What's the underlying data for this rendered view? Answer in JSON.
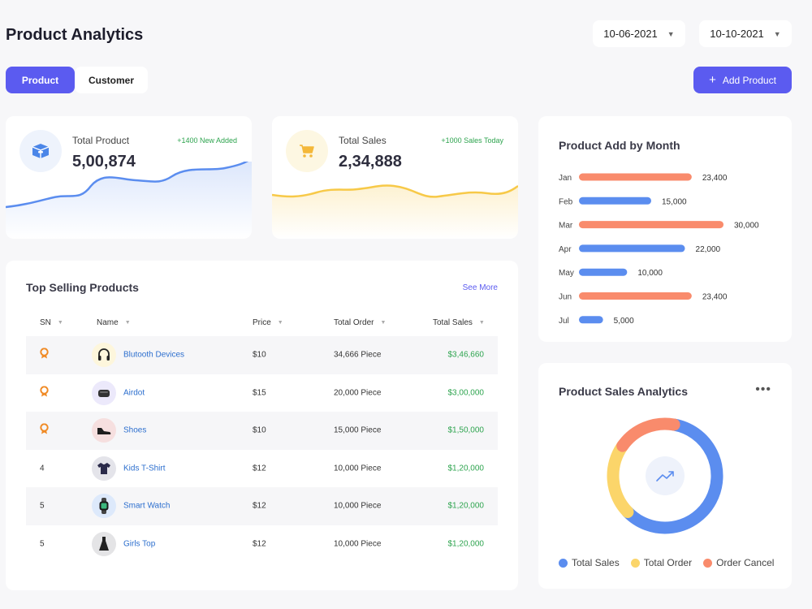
{
  "header": {
    "title": "Product Analytics",
    "date_start": "10-06-2021",
    "date_end": "10-10-2021"
  },
  "tabs": [
    {
      "label": "Product",
      "active": true
    },
    {
      "label": "Customer",
      "active": false
    }
  ],
  "add_button": {
    "label": "Add Product",
    "icon": "plus-icon"
  },
  "stats": {
    "products": {
      "label": "Total Product",
      "value": "5,00,874",
      "badge": "+1400 New Added",
      "icon": "box-icon",
      "color": "#5b8def"
    },
    "sales": {
      "label": "Total Sales",
      "value": "2,34,888",
      "badge": "+1000 Sales Today",
      "icon": "cart-icon",
      "color": "#f7c948"
    }
  },
  "bar_card": {
    "title": "Product Add  by Month"
  },
  "chart_data": [
    {
      "type": "bar",
      "orientation": "horizontal",
      "title": "Product Add  by Month",
      "categories": [
        "Jan",
        "Feb",
        "Mar",
        "Apr",
        "May",
        "Jun",
        "Jul"
      ],
      "values": [
        23400,
        15000,
        30000,
        22000,
        10000,
        23400,
        5000
      ],
      "value_labels": [
        "23,400",
        "15,000",
        "30,000",
        "22,000",
        "10,000",
        "23,400",
        "5,000"
      ],
      "colors": [
        "#f98b6c",
        "#5b8def",
        "#f98b6c",
        "#5b8def",
        "#5b8def",
        "#f98b6c",
        "#5b8def"
      ],
      "xlim": [
        0,
        30000
      ]
    },
    {
      "type": "pie",
      "style": "donut",
      "title": "Product Sales Analytics",
      "categories": [
        "Total Sales",
        "Total Order",
        "Order Cancel"
      ],
      "values": [
        60,
        22,
        18
      ],
      "colors": [
        "#5b8def",
        "#fbd56a",
        "#f98b6c"
      ],
      "legend": "bottom"
    }
  ],
  "table": {
    "title": "Top Selling Products",
    "see_more": "See More",
    "columns": [
      "SN",
      "Name",
      "Price",
      "Total Order",
      "Total Sales"
    ],
    "rows": [
      {
        "sn": "",
        "medal": true,
        "name": "Blutooth Devices",
        "price": "$10",
        "order": "34,666 Piece",
        "sales": "$3,46,660",
        "avatar_icon": "headphones-icon",
        "avatar_bg": "#fdf6dc"
      },
      {
        "sn": "",
        "medal": true,
        "name": "Airdot",
        "price": "$15",
        "order": "20,000 Piece",
        "sales": "$3,00,000",
        "avatar_icon": "earbuds-icon",
        "avatar_bg": "#ece9fb"
      },
      {
        "sn": "",
        "medal": true,
        "name": "Shoes",
        "price": "$10",
        "order": "15,000 Piece",
        "sales": "$1,50,000",
        "avatar_icon": "shoe-icon",
        "avatar_bg": "#f6dfdf"
      },
      {
        "sn": "4",
        "medal": false,
        "name": "Kids T-Shirt",
        "price": "$12",
        "order": "10,000 Piece",
        "sales": "$1,20,000",
        "avatar_icon": "tshirt-icon",
        "avatar_bg": "#e4e4ea"
      },
      {
        "sn": "5",
        "medal": false,
        "name": "Smart Watch",
        "price": "$12",
        "order": "10,000 Piece",
        "sales": "$1,20,000",
        "avatar_icon": "watch-icon",
        "avatar_bg": "#dde9fb"
      },
      {
        "sn": "5",
        "medal": false,
        "name": "Girls Top",
        "price": "$12",
        "order": "10,000 Piece",
        "sales": "$1,20,000",
        "avatar_icon": "dress-icon",
        "avatar_bg": "#e4e4e6"
      }
    ]
  },
  "donut_card": {
    "title": "Product Sales Analytics",
    "center_icon": "trend-up-icon",
    "legend": [
      "Total Sales",
      "Total Order",
      "Order Cancel"
    ]
  }
}
